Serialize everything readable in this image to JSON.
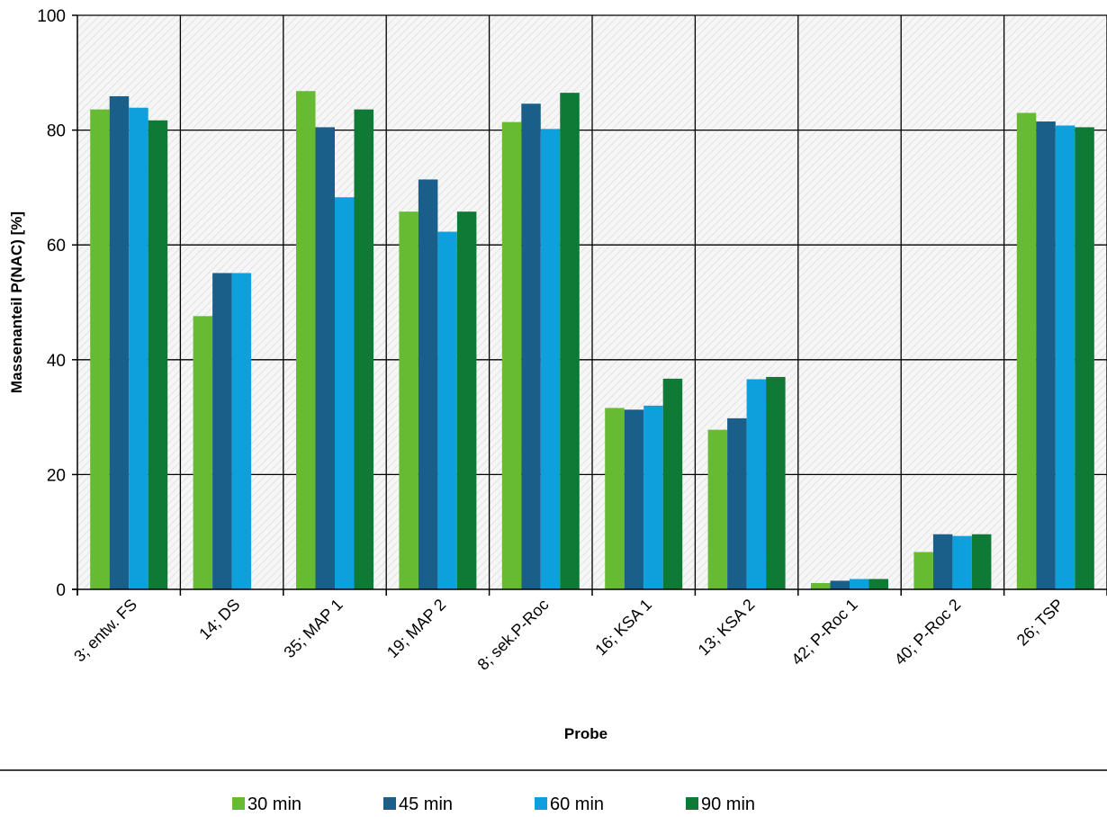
{
  "chart_data": {
    "type": "bar",
    "title": "",
    "xlabel": "Probe",
    "ylabel": "Massenanteil  P(NAC) [%]",
    "ylim": [
      0,
      100
    ],
    "yticks": [
      0,
      20,
      40,
      60,
      80,
      100
    ],
    "grid": true,
    "legend_position": "bottom",
    "categories": [
      "3; entw. FS",
      "14; DS",
      "35; MAP 1",
      "19; MAP 2",
      "8; sek.P-Roc",
      "16; KSA 1",
      "13; KSA 2",
      "42; P-Roc 1",
      "40; P-Roc 2",
      "26; TSP"
    ],
    "series": [
      {
        "name": "30 min",
        "color": "#66bb33",
        "values": [
          83.6,
          47.6,
          86.8,
          65.8,
          81.4,
          31.6,
          27.8,
          1.1,
          6.5,
          83.0
        ]
      },
      {
        "name": "45 min",
        "color": "#1a5e8a",
        "values": [
          85.9,
          55.1,
          80.5,
          71.4,
          84.6,
          31.3,
          29.8,
          1.5,
          9.6,
          81.5
        ]
      },
      {
        "name": "60 min",
        "color": "#0da0dc",
        "values": [
          83.9,
          55.1,
          68.3,
          62.3,
          80.2,
          32.0,
          36.6,
          1.8,
          9.3,
          80.8
        ]
      },
      {
        "name": "90 min",
        "color": "#0e7a36",
        "values": [
          81.7,
          null,
          83.6,
          65.8,
          86.5,
          36.7,
          37.0,
          1.8,
          9.6,
          80.5
        ]
      }
    ]
  }
}
